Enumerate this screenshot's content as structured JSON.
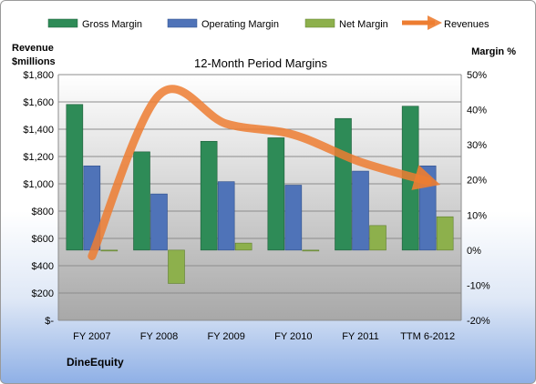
{
  "chart_data": {
    "type": "bar",
    "title": "12-Month Period Margins",
    "company": "DineEquity",
    "categories": [
      "FY 2007",
      "FY 2008",
      "FY 2009",
      "FY 2010",
      "FY 2011",
      "TTM 6-2012"
    ],
    "left_axis": {
      "label_line1": "Revenue",
      "label_line2": "$millions",
      "range": [
        0,
        1800
      ],
      "ticks": [
        "$-",
        "$200",
        "$400",
        "$600",
        "$800",
        "$1,000",
        "$1,200",
        "$1,400",
        "$1,600",
        "$1,800"
      ]
    },
    "right_axis": {
      "label": "Margin %",
      "range": [
        -20,
        50
      ],
      "ticks": [
        "-20%",
        "-10%",
        "0%",
        "10%",
        "20%",
        "30%",
        "40%",
        "50%"
      ]
    },
    "series": [
      {
        "name": "Gross Margin",
        "kind": "bar",
        "axis": "right",
        "color": "#2e8b57",
        "values": [
          41.5,
          28,
          31,
          32,
          37.5,
          41
        ]
      },
      {
        "name": "Operating Margin",
        "kind": "bar",
        "axis": "right",
        "color": "#4f73b8",
        "values": [
          24,
          16,
          19.5,
          18.5,
          22.5,
          24
        ]
      },
      {
        "name": "Net Margin",
        "kind": "bar",
        "axis": "right",
        "color": "#8db04c",
        "values": [
          0,
          -9.5,
          2,
          0,
          7,
          9.5
        ]
      },
      {
        "name": "Revenues",
        "kind": "line",
        "axis": "left",
        "color": "#ed7d31",
        "values": [
          470,
          1650,
          1440,
          1360,
          1160,
          1020
        ]
      }
    ],
    "grid": true,
    "legend_position": "top"
  }
}
